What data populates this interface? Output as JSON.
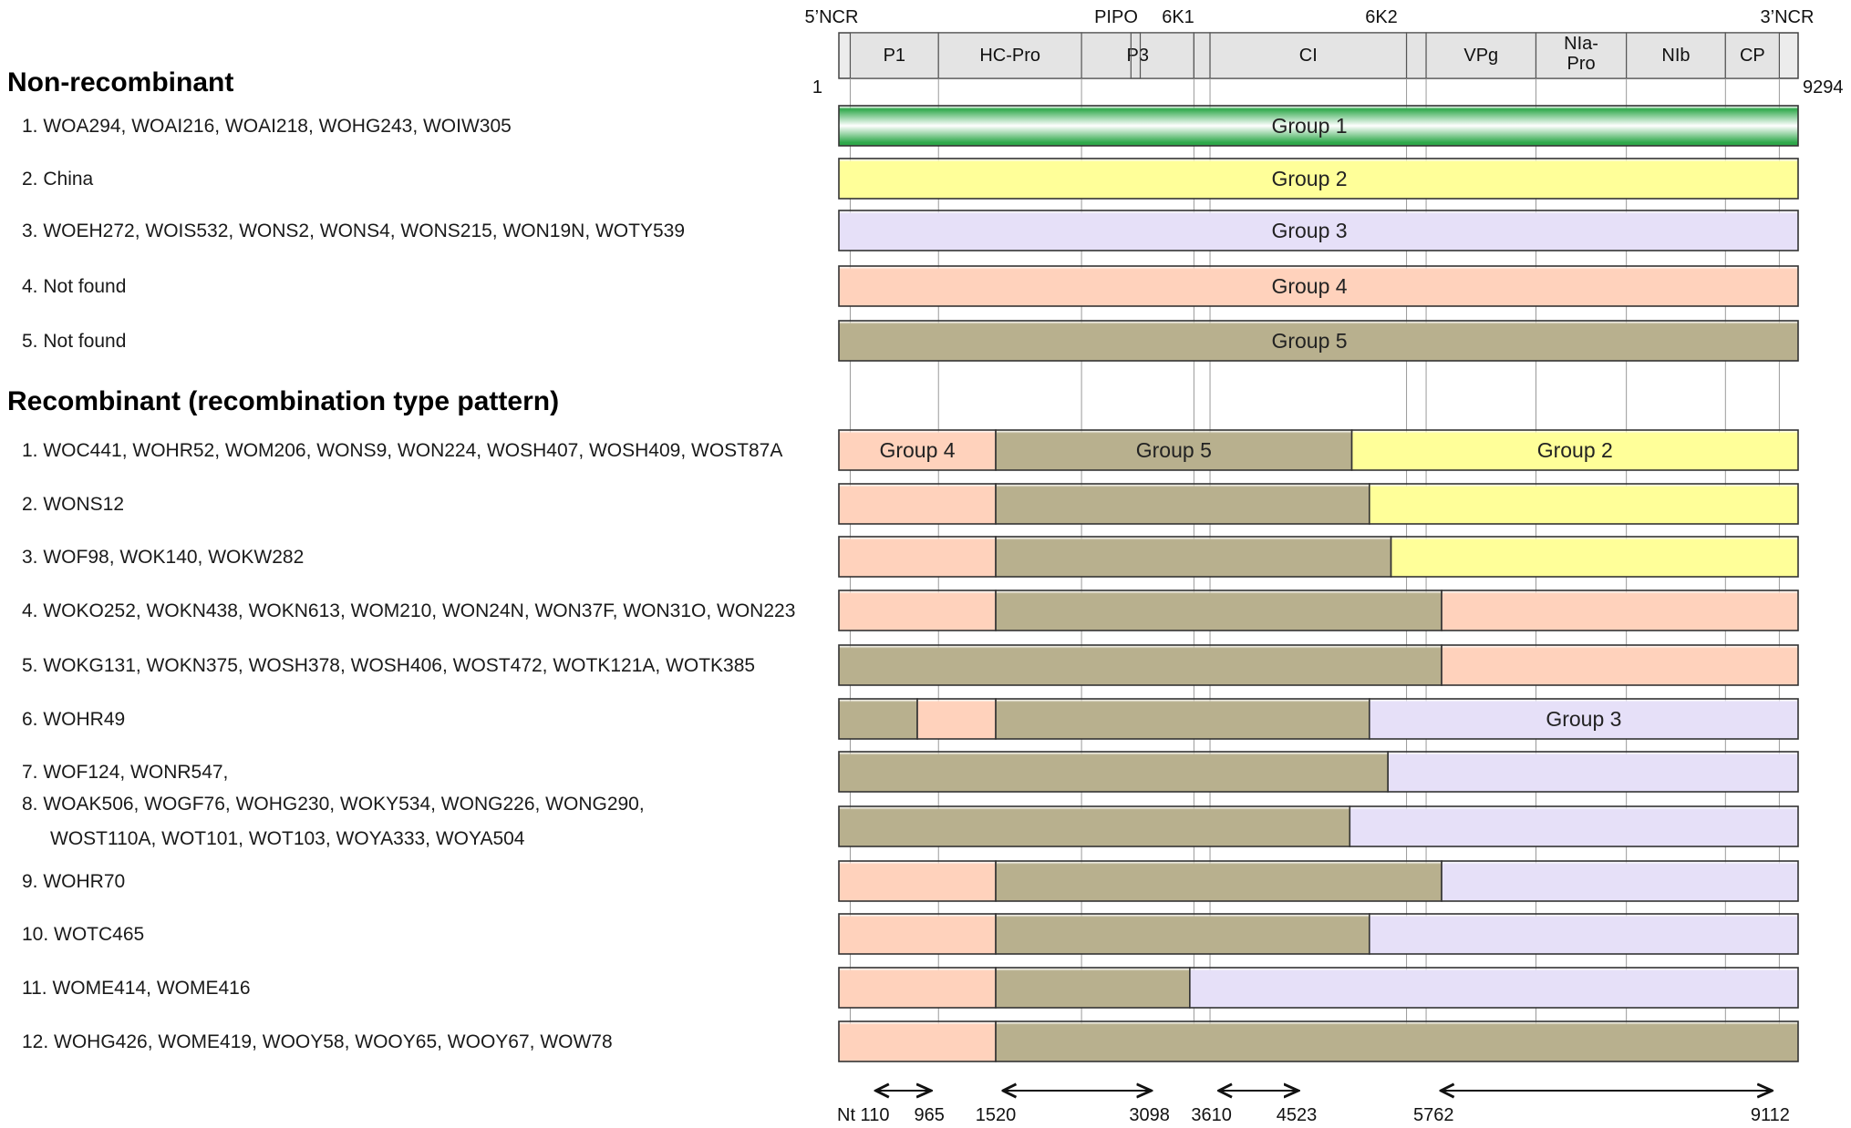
{
  "genome": {
    "start": 1,
    "end": 9294,
    "labels_top": [
      "5’NCR",
      "PIPO",
      "6K1",
      "6K2",
      "3’NCR"
    ],
    "regions": [
      {
        "name": "P1",
        "start": 110,
        "end": 965
      },
      {
        "name": "HC-Pro",
        "start": 965,
        "end": 2351
      },
      {
        "name": "P3",
        "start": 2351,
        "end": 3440
      },
      {
        "name": "6K1",
        "start": 3440,
        "end": 3596
      },
      {
        "name": "CI",
        "start": 3596,
        "end": 5500
      },
      {
        "name": "6K2",
        "start": 5500,
        "end": 5690
      },
      {
        "name": "VPg",
        "start": 5690,
        "end": 6754
      },
      {
        "name": "NIa-Pro",
        "start": 6754,
        "end": 7630
      },
      {
        "name": "NIb",
        "start": 7630,
        "end": 8590
      },
      {
        "name": "CP",
        "start": 8590,
        "end": 9112
      }
    ],
    "pipo": {
      "start": 2830,
      "end": 2920
    }
  },
  "colors": {
    "g1": "#2ea84a",
    "g2": "#ffff99",
    "g3": "#e6e0f8",
    "g4": "#ffd2bc",
    "g5": "#b8b08e"
  },
  "sections": {
    "nonrec_title": "Non-recombinant",
    "rec_title": "Recombinant (recombination type pattern)"
  },
  "nonrec": [
    {
      "label": "1.  WOA294, WOAI216, WOAI218, WOHG243, WOIW305",
      "group_label": "Group 1",
      "segments": [
        {
          "g": "g1",
          "end": 9294
        }
      ]
    },
    {
      "label": "2.  China",
      "group_label": "Group 2",
      "segments": [
        {
          "g": "g2",
          "end": 9294
        }
      ]
    },
    {
      "label": "3.  WOEH272, WOIS532, WONS2, WONS4, WONS215, WON19N, WOTY539",
      "group_label": "Group 3",
      "segments": [
        {
          "g": "g3",
          "end": 9294
        }
      ]
    },
    {
      "label": "4.  Not found",
      "group_label": "Group 4",
      "segments": [
        {
          "g": "g4",
          "end": 9294
        }
      ]
    },
    {
      "label": "5.  Not found",
      "group_label": "Group 5",
      "segments": [
        {
          "g": "g5",
          "end": 9294
        }
      ]
    }
  ],
  "rec": [
    {
      "label": "1.  WOC441, WOHR52, WOM206, WONS9, WON224, WOSH407, WOSH409, WOST87A",
      "segments": [
        {
          "g": "g4",
          "end": 1520,
          "text": "Group 4"
        },
        {
          "g": "g5",
          "end": 4970,
          "text": "Group 5"
        },
        {
          "g": "g2",
          "end": 9294,
          "text": "Group 2"
        }
      ]
    },
    {
      "label": "2.  WONS12",
      "segments": [
        {
          "g": "g4",
          "end": 1520
        },
        {
          "g": "g5",
          "end": 5140
        },
        {
          "g": "g2",
          "end": 9294
        }
      ]
    },
    {
      "label": "3.  WOF98, WOK140, WOKW282",
      "segments": [
        {
          "g": "g4",
          "end": 1520
        },
        {
          "g": "g5",
          "end": 5350
        },
        {
          "g": "g2",
          "end": 9294
        }
      ]
    },
    {
      "label": "4.  WOKO252, WOKN438, WOKN613, WOM210, WON24N, WON37F, WON31O, WON223",
      "segments": [
        {
          "g": "g4",
          "end": 1520
        },
        {
          "g": "g5",
          "end": 5840
        },
        {
          "g": "g4",
          "end": 9294
        }
      ]
    },
    {
      "label": "5.  WOKG131, WOKN375, WOSH378, WOSH406, WOST472, WOTK121A, WOTK385",
      "segments": [
        {
          "g": "g5",
          "end": 5840
        },
        {
          "g": "g4",
          "end": 9294
        }
      ]
    },
    {
      "label": "6.  WOHR49",
      "segments": [
        {
          "g": "g5",
          "end": 760
        },
        {
          "g": "g4",
          "end": 1520
        },
        {
          "g": "g5",
          "end": 5140
        },
        {
          "g": "g3",
          "end": 9294,
          "text": "Group 3"
        }
      ]
    },
    {
      "label": "7.  WOF124, WONR547,",
      "segments": [
        {
          "g": "g5",
          "end": 5320
        },
        {
          "g": "g3",
          "end": 9294
        }
      ]
    },
    {
      "label": "8.  WOAK506, WOGF76, WOHG230, WOKY534, WONG226, WONG290,",
      "label2": "WOST110A, WOT101, WOT103, WOYA333, WOYA504",
      "segments": [
        {
          "g": "g5",
          "end": 4950
        },
        {
          "g": "g3",
          "end": 9294
        }
      ]
    },
    {
      "label": "9.  WOHR70",
      "segments": [
        {
          "g": "g4",
          "end": 1520
        },
        {
          "g": "g5",
          "end": 5840
        },
        {
          "g": "g3",
          "end": 9294
        }
      ]
    },
    {
      "label": "10.  WOTC465",
      "segments": [
        {
          "g": "g4",
          "end": 1520
        },
        {
          "g": "g5",
          "end": 5140
        },
        {
          "g": "g3",
          "end": 9294
        }
      ]
    },
    {
      "label": "11.  WOME414, WOME416",
      "segments": [
        {
          "g": "g4",
          "end": 1520
        },
        {
          "g": "g5",
          "end": 3400
        },
        {
          "g": "g3",
          "end": 9294
        }
      ]
    },
    {
      "label": "12.  WOHG426, WOME419, WOOY58, WOOY65, WOOY67, WOW78",
      "segments": [
        {
          "g": "g4",
          "end": 1520
        },
        {
          "g": "g5",
          "end": 9294
        }
      ]
    }
  ],
  "ranges": [
    {
      "from": 110,
      "to": 965,
      "from_label": "Nt 110",
      "to_label": "965"
    },
    {
      "from": 1520,
      "to": 3098,
      "from_label": "1520",
      "to_label": "3098"
    },
    {
      "from": 3610,
      "to": 4523,
      "from_label": "3610",
      "to_label": "4523"
    },
    {
      "from": 5762,
      "to": 9112,
      "from_label": "5762",
      "to_label": "9112"
    }
  ]
}
